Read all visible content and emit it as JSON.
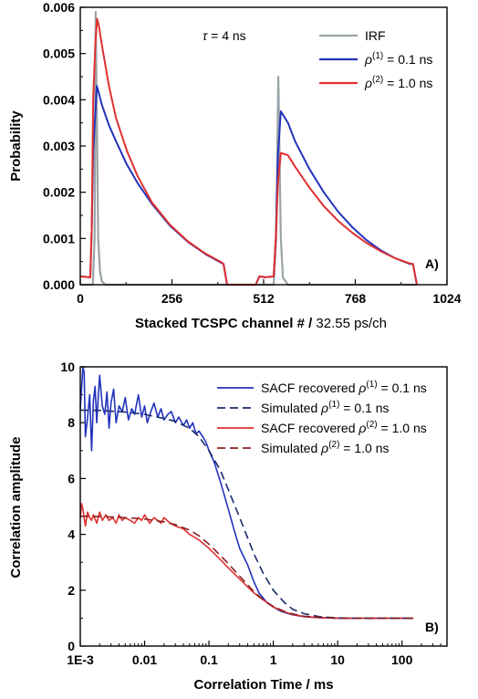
{
  "chart_data": [
    {
      "type": "line",
      "panel_label": "A)",
      "annotation": {
        "symbol": "τ",
        "text": " = 4 ns"
      },
      "xlabel": {
        "bold": "Stacked TCSPC channel # /",
        "normal": " 32.55 ps/ch"
      },
      "ylabel": "Probability",
      "xlim": [
        0,
        1024
      ],
      "ylim": [
        0,
        0.006
      ],
      "xticks": [
        "0",
        "256",
        "512",
        "768",
        "1024"
      ],
      "yticks": [
        "0.000",
        "0.001",
        "0.002",
        "0.003",
        "0.004",
        "0.005",
        "0.006"
      ],
      "legend": [
        {
          "text": "IRF",
          "color": "#9aa3a8"
        },
        {
          "sym": "ρ",
          "sup": "(1)",
          "rest": " = 0.1 ns",
          "color": "#2233bb"
        },
        {
          "sym": "ρ",
          "sup": "(2)",
          "rest": " = 1.0 ns",
          "color": "#e03030"
        }
      ],
      "series": [
        {
          "name": "IRF",
          "color": "#9aa3a8",
          "x": [
            0,
            35,
            40,
            43,
            46,
            50,
            55,
            60,
            70,
            400,
            520,
            540,
            547,
            553,
            560,
            566,
            580,
            940
          ],
          "y": [
            0,
            0,
            0.001,
            0.0059,
            0.0038,
            0.001,
            0.0003,
            8e-05,
            0,
            0,
            0,
            0,
            0.001,
            0.0045,
            0.001,
            0.00015,
            0,
            0
          ]
        },
        {
          "name": "ρ(1) = 0.1 ns",
          "color": "#2233bb",
          "x": [
            0,
            28,
            32,
            36,
            42,
            46,
            50,
            60,
            80,
            100,
            130,
            160,
            200,
            250,
            300,
            350,
            395,
            400,
            410,
            490,
            500,
            510,
            515,
            540,
            546,
            552,
            560,
            580,
            600,
            640,
            680,
            720,
            760,
            800,
            840,
            880,
            920,
            929,
            940
          ],
          "y": [
            0.00018,
            0.00016,
            0.0012,
            0.0029,
            0.0037,
            0.0043,
            0.0042,
            0.0039,
            0.00345,
            0.0031,
            0.0026,
            0.0022,
            0.00175,
            0.00128,
            0.00093,
            0.00066,
            0.00047,
            0.00045,
            0,
            0,
            0.00018,
            0.00017,
            0.00016,
            0.00018,
            0.001,
            0.0028,
            0.00375,
            0.0035,
            0.0031,
            0.0025,
            0.002,
            0.00158,
            0.00124,
            0.00096,
            0.00074,
            0.00057,
            0.00045,
            0.00045,
            0
          ]
        },
        {
          "name": "ρ(2) = 1.0 ns",
          "color": "#e03030",
          "x": [
            0,
            28,
            32,
            36,
            42,
            47,
            52,
            60,
            80,
            100,
            130,
            160,
            200,
            250,
            300,
            350,
            395,
            400,
            410,
            490,
            500,
            510,
            515,
            540,
            546,
            552,
            560,
            580,
            600,
            640,
            680,
            720,
            760,
            800,
            840,
            880,
            920,
            929,
            940
          ],
          "y": [
            0.00018,
            0.00016,
            0.0012,
            0.004,
            0.0052,
            0.00575,
            0.0056,
            0.0052,
            0.0043,
            0.0036,
            0.0029,
            0.00235,
            0.00178,
            0.0013,
            0.00094,
            0.00067,
            0.00048,
            0.00045,
            0,
            0,
            0.00018,
            0.00017,
            0.00016,
            0.00018,
            0.001,
            0.0022,
            0.00285,
            0.0028,
            0.00255,
            0.0021,
            0.0017,
            0.00138,
            0.00112,
            0.0009,
            0.00072,
            0.00057,
            0.00046,
            0.00045,
            0
          ]
        }
      ]
    },
    {
      "type": "line",
      "panel_label": "B)",
      "xlabel": "Correlation Time / ms",
      "ylabel": "Correlation amplitude",
      "xscale": "log",
      "xlim": [
        0.001,
        500
      ],
      "ylim": [
        0,
        10
      ],
      "xticks": [
        {
          "value": 0.001,
          "label": "1E-3"
        },
        {
          "value": 0.01,
          "label": "0.01"
        },
        {
          "value": 0.1,
          "label": "0.1"
        },
        {
          "value": 1,
          "label": "1"
        },
        {
          "value": 10,
          "label": "10"
        },
        {
          "value": 100,
          "label": "100"
        }
      ],
      "yticks": [
        "0",
        "2",
        "4",
        "6",
        "8",
        "10"
      ],
      "legend": [
        {
          "pre": "SACF recovered ",
          "sym": "ρ",
          "sup": "(1)",
          "rest": " = 0.1 ns",
          "color": "#2233bb",
          "dash": false
        },
        {
          "pre": "Simulated ",
          "sym": "ρ",
          "sup": "(1)",
          "rest": " = 0.1 ns",
          "color": "#1a2a6c",
          "dash": true
        },
        {
          "pre": "SACF recovered ",
          "sym": "ρ",
          "sup": "(2)",
          "rest": " = 1.0 ns",
          "color": "#e03030",
          "dash": false
        },
        {
          "pre": "Simulated ",
          "sym": "ρ",
          "sup": "(2)",
          "rest": " = 1.0 ns",
          "color": "#8b2020",
          "dash": true
        }
      ],
      "series": [
        {
          "name": "SACF recovered ρ(1) = 0.1 ns",
          "color": "#2233bb",
          "dash": false,
          "x": [
            0.001,
            0.0011,
            0.00115,
            0.0012,
            0.0013,
            0.0014,
            0.0015,
            0.0016,
            0.0017,
            0.0018,
            0.002,
            0.0022,
            0.0024,
            0.0026,
            0.0028,
            0.003,
            0.0033,
            0.0036,
            0.004,
            0.0045,
            0.005,
            0.0056,
            0.0063,
            0.007,
            0.008,
            0.009,
            0.01,
            0.011,
            0.0125,
            0.014,
            0.016,
            0.018,
            0.02,
            0.023,
            0.026,
            0.03,
            0.034,
            0.04,
            0.045,
            0.05,
            0.056,
            0.063,
            0.07,
            0.08,
            0.09,
            0.1,
            0.12,
            0.15,
            0.2,
            0.25,
            0.3,
            0.4,
            0.5,
            0.6,
            0.8,
            1,
            1.3,
            1.6,
            2,
            2.5,
            3,
            4,
            5,
            7,
            10,
            15,
            20,
            50,
            100,
            150
          ],
          "y": [
            8.5,
            10.0,
            9.8,
            7.5,
            8.2,
            9.0,
            7.0,
            8.8,
            9.3,
            8.0,
            9.7,
            8.6,
            8.3,
            9.1,
            7.8,
            8.7,
            9.2,
            8.0,
            8.6,
            8.4,
            8.9,
            8.1,
            8.5,
            8.3,
            9.0,
            8.2,
            8.6,
            8.0,
            8.4,
            8.7,
            8.2,
            8.5,
            8.1,
            8.3,
            8.4,
            8.0,
            8.2,
            7.9,
            8.1,
            7.8,
            8.0,
            7.6,
            7.7,
            7.5,
            7.3,
            7.0,
            6.6,
            5.9,
            4.9,
            4.1,
            3.5,
            2.9,
            2.3,
            1.9,
            1.55,
            1.4,
            1.25,
            1.18,
            1.12,
            1.08,
            1.05,
            1.03,
            1.02,
            1.01,
            1.0,
            1.0,
            1.0,
            1.0,
            1.0,
            1.0
          ]
        },
        {
          "name": "Simulated ρ(1) = 0.1 ns",
          "color": "#1a2a6c",
          "dash": true,
          "x": [
            0.001,
            0.002,
            0.005,
            0.01,
            0.02,
            0.03,
            0.05,
            0.07,
            0.1,
            0.15,
            0.2,
            0.3,
            0.5,
            0.7,
            1,
            1.5,
            2,
            3,
            5,
            7,
            10,
            20,
            50,
            150
          ],
          "y": [
            8.45,
            8.44,
            8.38,
            8.3,
            8.15,
            8.05,
            7.8,
            7.5,
            7.0,
            6.3,
            5.6,
            4.6,
            3.3,
            2.6,
            2.0,
            1.55,
            1.32,
            1.16,
            1.06,
            1.03,
            1.01,
            1.0,
            1.0,
            1.0
          ]
        },
        {
          "name": "SACF recovered ρ(2) = 1.0 ns",
          "color": "#e03030",
          "dash": false,
          "x": [
            0.001,
            0.00105,
            0.0011,
            0.0012,
            0.0013,
            0.0014,
            0.0015,
            0.0016,
            0.0018,
            0.002,
            0.0022,
            0.0025,
            0.0028,
            0.0032,
            0.0036,
            0.004,
            0.0045,
            0.005,
            0.006,
            0.007,
            0.008,
            0.009,
            0.01,
            0.012,
            0.014,
            0.016,
            0.018,
            0.02,
            0.025,
            0.03,
            0.04,
            0.05,
            0.07,
            0.1,
            0.15,
            0.2,
            0.3,
            0.5,
            0.7,
            1,
            1.5,
            2,
            3,
            5,
            7,
            10,
            20,
            50,
            100,
            150
          ],
          "y": [
            4.6,
            5.1,
            4.9,
            4.3,
            4.8,
            4.6,
            4.5,
            4.7,
            4.4,
            4.8,
            4.5,
            4.7,
            4.5,
            4.6,
            4.4,
            4.7,
            4.5,
            4.6,
            4.5,
            4.4,
            4.6,
            4.5,
            4.7,
            4.4,
            4.6,
            4.5,
            4.4,
            4.6,
            4.4,
            4.3,
            4.2,
            4.0,
            3.8,
            3.5,
            3.1,
            2.8,
            2.4,
            1.9,
            1.65,
            1.4,
            1.22,
            1.13,
            1.06,
            1.02,
            1.01,
            1.0,
            1.0,
            1.0,
            1.0,
            1.0
          ]
        },
        {
          "name": "Simulated ρ(2) = 1.0 ns",
          "color": "#8b2020",
          "dash": true,
          "x": [
            0.001,
            0.002,
            0.005,
            0.01,
            0.02,
            0.03,
            0.05,
            0.07,
            0.1,
            0.15,
            0.2,
            0.3,
            0.5,
            0.7,
            1,
            1.5,
            2,
            3,
            5,
            7,
            10,
            20,
            50,
            150
          ],
          "y": [
            4.65,
            4.64,
            4.6,
            4.55,
            4.45,
            4.35,
            4.15,
            3.95,
            3.65,
            3.25,
            2.95,
            2.5,
            1.95,
            1.65,
            1.42,
            1.24,
            1.15,
            1.07,
            1.03,
            1.01,
            1.0,
            1.0,
            1.0,
            1.0
          ]
        }
      ]
    }
  ]
}
